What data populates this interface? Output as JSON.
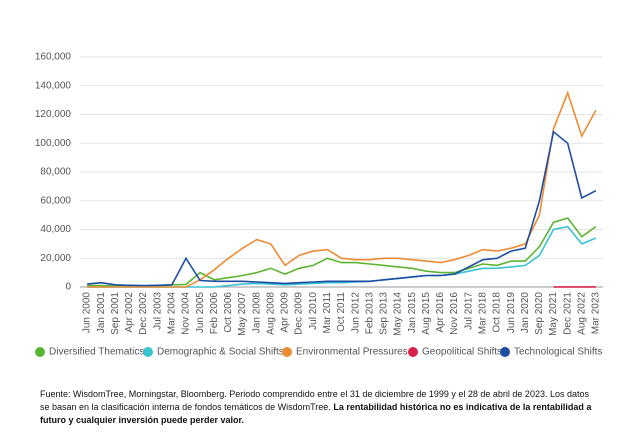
{
  "chart_data": {
    "type": "line",
    "categories": [
      "Jun 2000",
      "Jan 2001",
      "Sep 2001",
      "Apr 2002",
      "Dec 2002",
      "Jul 2003",
      "Mar 2004",
      "Nov 2004",
      "Jun 2005",
      "Feb 2006",
      "Oct 2006",
      "May 2007",
      "Jan 2008",
      "Aug 2008",
      "Apr 2009",
      "Dec 2009",
      "Jul 2010",
      "Mar 2011",
      "Oct 2011",
      "Jun 2012",
      "Feb 2013",
      "Sep 2013",
      "May 2014",
      "Jan 2015",
      "Aug 2015",
      "Apr 2016",
      "Nov 2016",
      "Jul 2017",
      "Mar 2018",
      "Oct 2018",
      "Jun 2019",
      "Jan 2020",
      "Sep 2020",
      "May 2021",
      "Dec 2021",
      "Aug 2022",
      "Mar 2023"
    ],
    "series": [
      {
        "name": "Diversified Thematics",
        "color": "#5cb531",
        "values": [
          1000,
          1000,
          800,
          700,
          600,
          800,
          1500,
          1800,
          10000,
          5000,
          6500,
          8000,
          10000,
          13000,
          9000,
          13000,
          15000,
          20000,
          17000,
          17000,
          16000,
          15000,
          14000,
          13000,
          11000,
          10000,
          10000,
          13000,
          16000,
          15000,
          18000,
          18000,
          28000,
          45000,
          48000,
          35000,
          42000
        ]
      },
      {
        "name": "Demographic & Social Shifts",
        "color": "#38c3d3",
        "values": [
          0,
          0,
          0,
          0,
          0,
          0,
          0,
          0,
          0,
          0,
          1000,
          2000,
          2500,
          2000,
          1500,
          2000,
          2500,
          3000,
          3000,
          3500,
          4000,
          5000,
          6000,
          7000,
          8000,
          8000,
          9000,
          11000,
          13000,
          13000,
          14000,
          15000,
          22000,
          40000,
          42000,
          30000,
          34000
        ]
      },
      {
        "name": "Environmental Pressures",
        "color": "#ee8c34",
        "values": [
          0,
          0,
          0,
          0,
          0,
          0,
          0,
          0,
          5000,
          12000,
          20000,
          27000,
          33000,
          30000,
          15000,
          22000,
          25000,
          26000,
          20000,
          19000,
          19000,
          20000,
          20000,
          19000,
          18000,
          17000,
          19000,
          22000,
          26000,
          25000,
          27000,
          30000,
          50000,
          110000,
          135000,
          105000,
          123000
        ]
      },
      {
        "name": "Geopolitical Shifts",
        "color": "#d9224a",
        "values": [
          null,
          null,
          null,
          null,
          null,
          null,
          null,
          null,
          null,
          null,
          null,
          null,
          null,
          null,
          null,
          null,
          null,
          null,
          null,
          null,
          null,
          null,
          null,
          null,
          null,
          null,
          null,
          null,
          null,
          null,
          null,
          null,
          null,
          100,
          100,
          100,
          100
        ]
      },
      {
        "name": "Technological Shifts",
        "color": "#1d4ea3",
        "values": [
          2000,
          3000,
          1500,
          1200,
          1000,
          1200,
          1500,
          20000,
          4500,
          4000,
          4000,
          4000,
          3500,
          3000,
          2500,
          3000,
          3500,
          4000,
          4000,
          4000,
          4000,
          5000,
          6000,
          7000,
          8000,
          8000,
          9000,
          14000,
          19000,
          20000,
          25000,
          27000,
          60000,
          108000,
          100000,
          62000,
          67000
        ]
      }
    ],
    "ylim": [
      0,
      160000
    ],
    "yticks": [
      {
        "value": 0,
        "label": "0"
      },
      {
        "value": 20000,
        "label": "20,000"
      },
      {
        "value": 40000,
        "label": "40,000"
      },
      {
        "value": 60000,
        "label": "60,000"
      },
      {
        "value": 80000,
        "label": "80,000"
      },
      {
        "value": 100000,
        "label": "100,000"
      },
      {
        "value": 120000,
        "label": "120,000"
      },
      {
        "value": 140000,
        "label": "140,000"
      },
      {
        "value": 160000,
        "label": "160,000"
      }
    ],
    "grid": true
  },
  "footnote": {
    "text": "Fuente: WisdomTree, Morningstar, Bloomberg. Periodo comprendido entre el 31 de diciembre de 1999 y el 28 de abril de 2023. Los datos se basan en la clasificación interna de fondos temáticos de WisdomTree.",
    "bold": "La rentabilidad histórica no es indicativa de la rentabilidad a futuro y cualquier inversión puede perder valor."
  }
}
